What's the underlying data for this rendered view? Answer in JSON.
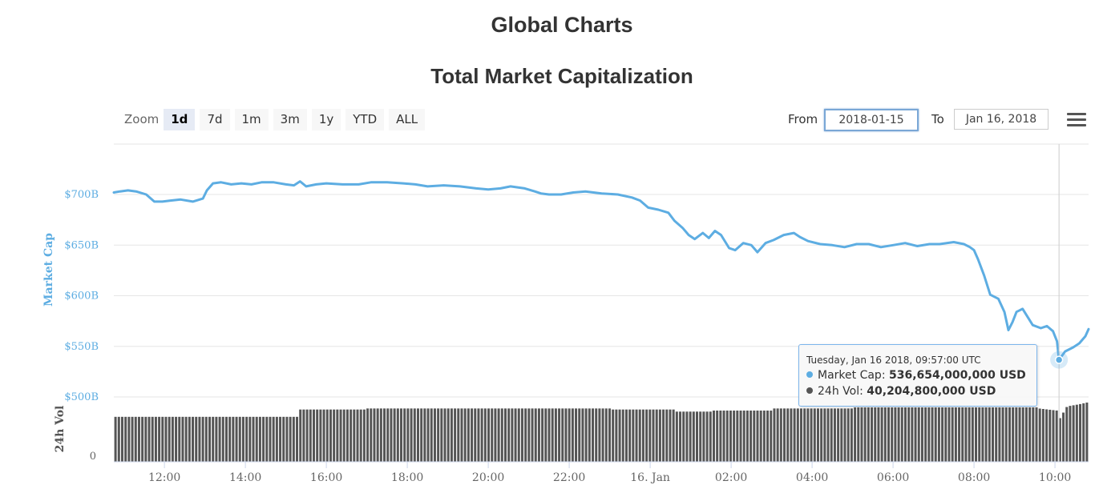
{
  "page": {
    "title": "Global Charts"
  },
  "chart_data": {
    "type": "line",
    "title": "Total Market Capitalization",
    "xlabel": "",
    "ylabel": "Market Cap",
    "y2label": "24h Vol",
    "ylim": [
      480,
      720
    ],
    "y_ticks": [
      "$500B",
      "$550B",
      "$600B",
      "$650B",
      "$700B"
    ],
    "y_tick_values": [
      500,
      550,
      600,
      650,
      700
    ],
    "vol_tick": "0",
    "x_ticks": [
      "12:00",
      "14:00",
      "16:00",
      "18:00",
      "20:00",
      "22:00",
      "16. Jan",
      "02:00",
      "04:00",
      "06:00",
      "08:00",
      "10:00"
    ],
    "x_tick_hours": [
      12,
      14,
      16,
      18,
      20,
      22,
      24,
      26,
      28,
      30,
      32,
      34
    ],
    "x_range_hours": [
      10.75,
      34.83
    ],
    "grid": true,
    "series": [
      {
        "name": "Market Cap",
        "color": "#5dade2",
        "unit": "B USD",
        "points": [
          [
            10.75,
            702
          ],
          [
            10.9,
            703
          ],
          [
            11.1,
            704
          ],
          [
            11.3,
            703
          ],
          [
            11.55,
            700
          ],
          [
            11.75,
            693
          ],
          [
            11.95,
            693
          ],
          [
            12.15,
            694
          ],
          [
            12.4,
            695
          ],
          [
            12.7,
            693
          ],
          [
            12.95,
            696
          ],
          [
            13.05,
            704
          ],
          [
            13.2,
            711
          ],
          [
            13.4,
            712
          ],
          [
            13.65,
            710
          ],
          [
            13.9,
            711
          ],
          [
            14.15,
            710
          ],
          [
            14.4,
            712
          ],
          [
            14.7,
            712
          ],
          [
            15.0,
            710
          ],
          [
            15.2,
            709
          ],
          [
            15.35,
            713
          ],
          [
            15.5,
            708
          ],
          [
            15.75,
            710
          ],
          [
            16.0,
            711
          ],
          [
            16.4,
            710
          ],
          [
            16.8,
            710
          ],
          [
            17.1,
            712
          ],
          [
            17.5,
            712
          ],
          [
            17.9,
            711
          ],
          [
            18.2,
            710
          ],
          [
            18.5,
            708
          ],
          [
            18.9,
            709
          ],
          [
            19.3,
            708
          ],
          [
            19.7,
            706
          ],
          [
            20.0,
            705
          ],
          [
            20.3,
            706
          ],
          [
            20.55,
            708
          ],
          [
            20.9,
            706
          ],
          [
            21.15,
            703
          ],
          [
            21.3,
            701
          ],
          [
            21.5,
            700
          ],
          [
            21.8,
            700
          ],
          [
            22.1,
            702
          ],
          [
            22.4,
            703
          ],
          [
            22.8,
            701
          ],
          [
            23.2,
            700
          ],
          [
            23.55,
            697
          ],
          [
            23.75,
            694
          ],
          [
            23.95,
            687
          ],
          [
            24.2,
            685
          ],
          [
            24.45,
            682
          ],
          [
            24.6,
            674
          ],
          [
            24.8,
            667
          ],
          [
            24.95,
            660
          ],
          [
            25.1,
            656
          ],
          [
            25.3,
            662
          ],
          [
            25.45,
            657
          ],
          [
            25.6,
            664
          ],
          [
            25.75,
            660
          ],
          [
            25.95,
            647
          ],
          [
            26.1,
            645
          ],
          [
            26.3,
            652
          ],
          [
            26.5,
            650
          ],
          [
            26.65,
            643
          ],
          [
            26.85,
            652
          ],
          [
            27.05,
            655
          ],
          [
            27.3,
            660
          ],
          [
            27.55,
            662
          ],
          [
            27.7,
            658
          ],
          [
            27.9,
            654
          ],
          [
            28.2,
            651
          ],
          [
            28.5,
            650
          ],
          [
            28.8,
            648
          ],
          [
            29.1,
            651
          ],
          [
            29.4,
            651
          ],
          [
            29.7,
            648
          ],
          [
            30.0,
            650
          ],
          [
            30.3,
            652
          ],
          [
            30.6,
            649
          ],
          [
            30.9,
            651
          ],
          [
            31.15,
            651
          ],
          [
            31.5,
            653
          ],
          [
            31.75,
            651
          ],
          [
            31.9,
            648
          ],
          [
            32.0,
            645
          ],
          [
            32.1,
            636
          ],
          [
            32.25,
            620
          ],
          [
            32.4,
            601
          ],
          [
            32.6,
            597
          ],
          [
            32.75,
            584
          ],
          [
            32.85,
            566
          ],
          [
            32.95,
            574
          ],
          [
            33.05,
            584
          ],
          [
            33.2,
            587
          ],
          [
            33.45,
            571
          ],
          [
            33.65,
            568
          ],
          [
            33.8,
            570
          ],
          [
            33.95,
            565
          ],
          [
            34.05,
            555
          ],
          [
            34.1,
            536.654
          ],
          [
            34.25,
            545
          ],
          [
            34.45,
            549
          ],
          [
            34.6,
            553
          ],
          [
            34.75,
            560
          ],
          [
            34.83,
            567
          ]
        ]
      },
      {
        "name": "24h Vol",
        "color": "#555555",
        "unit": "B USD",
        "vol_ylim": [
          0,
          62
        ],
        "points": [
          [
            10.75,
            43
          ],
          [
            15.3,
            44
          ],
          [
            15.35,
            50
          ],
          [
            17.0,
            51
          ],
          [
            23.0,
            50
          ],
          [
            24.6,
            48
          ],
          [
            25.5,
            49
          ],
          [
            27.0,
            51
          ],
          [
            29.0,
            52
          ],
          [
            31.5,
            52
          ],
          [
            33.6,
            51
          ],
          [
            34.05,
            49
          ],
          [
            34.1,
            40.2048
          ],
          [
            34.3,
            53
          ],
          [
            34.6,
            55
          ],
          [
            34.83,
            57
          ]
        ]
      }
    ]
  },
  "zoom": {
    "label": "Zoom",
    "buttons": [
      "1d",
      "7d",
      "1m",
      "3m",
      "1y",
      "YTD",
      "ALL"
    ],
    "active": "1d"
  },
  "range": {
    "from_label": "From",
    "from_value": "2018-01-15",
    "to_label": "To",
    "to_value": "Jan 16, 2018"
  },
  "tooltip": {
    "header": "Tuesday, Jan 16 2018, 09:57:00 UTC",
    "hover_hour": 34.1,
    "rows": [
      {
        "label": "Market Cap:",
        "value": "536,654,000,000 USD",
        "color": "#5dade2"
      },
      {
        "label": "24h Vol:",
        "value": "40,204,800,000 USD",
        "color": "#555555"
      }
    ]
  },
  "colors": {
    "line": "#5dade2",
    "axis_label": "#5dade2",
    "bars": "#555555",
    "grid": "#e6e6e6"
  }
}
